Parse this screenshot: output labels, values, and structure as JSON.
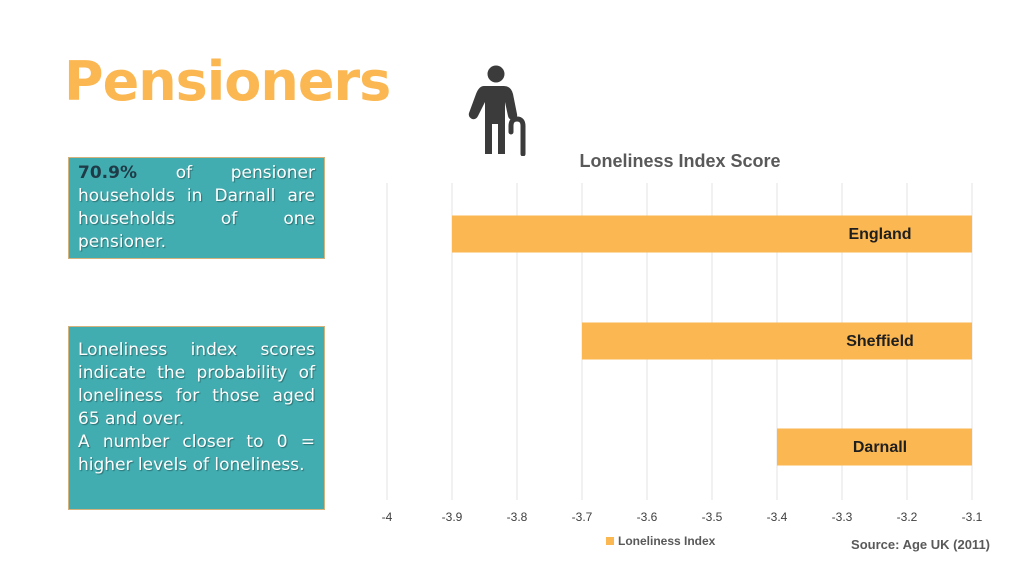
{
  "page": {
    "title": "Pensioners",
    "pensioner_icon": "elderly-person-with-cane-icon",
    "box1": {
      "highlight": "70.9%",
      "text": "of pensioner households in Darnall are households of one pensioner."
    },
    "box2": {
      "line1": "Loneliness index scores indicate the probability of loneliness for those aged 65 and over.",
      "line2": "A number closer to 0 = higher levels of loneliness."
    },
    "source": "Source: Age UK (2011)"
  },
  "colors": {
    "title": "#fbb751",
    "bar": "#fbb751",
    "box_fill": "#42adb0",
    "highlight_text": "#1f3b48"
  },
  "chart_data": {
    "type": "bar",
    "orientation": "horizontal",
    "title": "Loneliness Index Score",
    "categories": [
      "England",
      "Sheffield",
      "Darnall"
    ],
    "series": [
      {
        "name": "Loneliness Index",
        "values": [
          -3.9,
          -3.7,
          -3.4
        ]
      }
    ],
    "baseline": -3.1,
    "xlim": [
      -4,
      -3.1
    ],
    "xticks": [
      "-4",
      "-3.9",
      "-3.8",
      "-3.7",
      "-3.6",
      "-3.5",
      "-3.4",
      "-3.3",
      "-3.2",
      "-3.1"
    ],
    "grid": true,
    "legend": "bottom"
  }
}
